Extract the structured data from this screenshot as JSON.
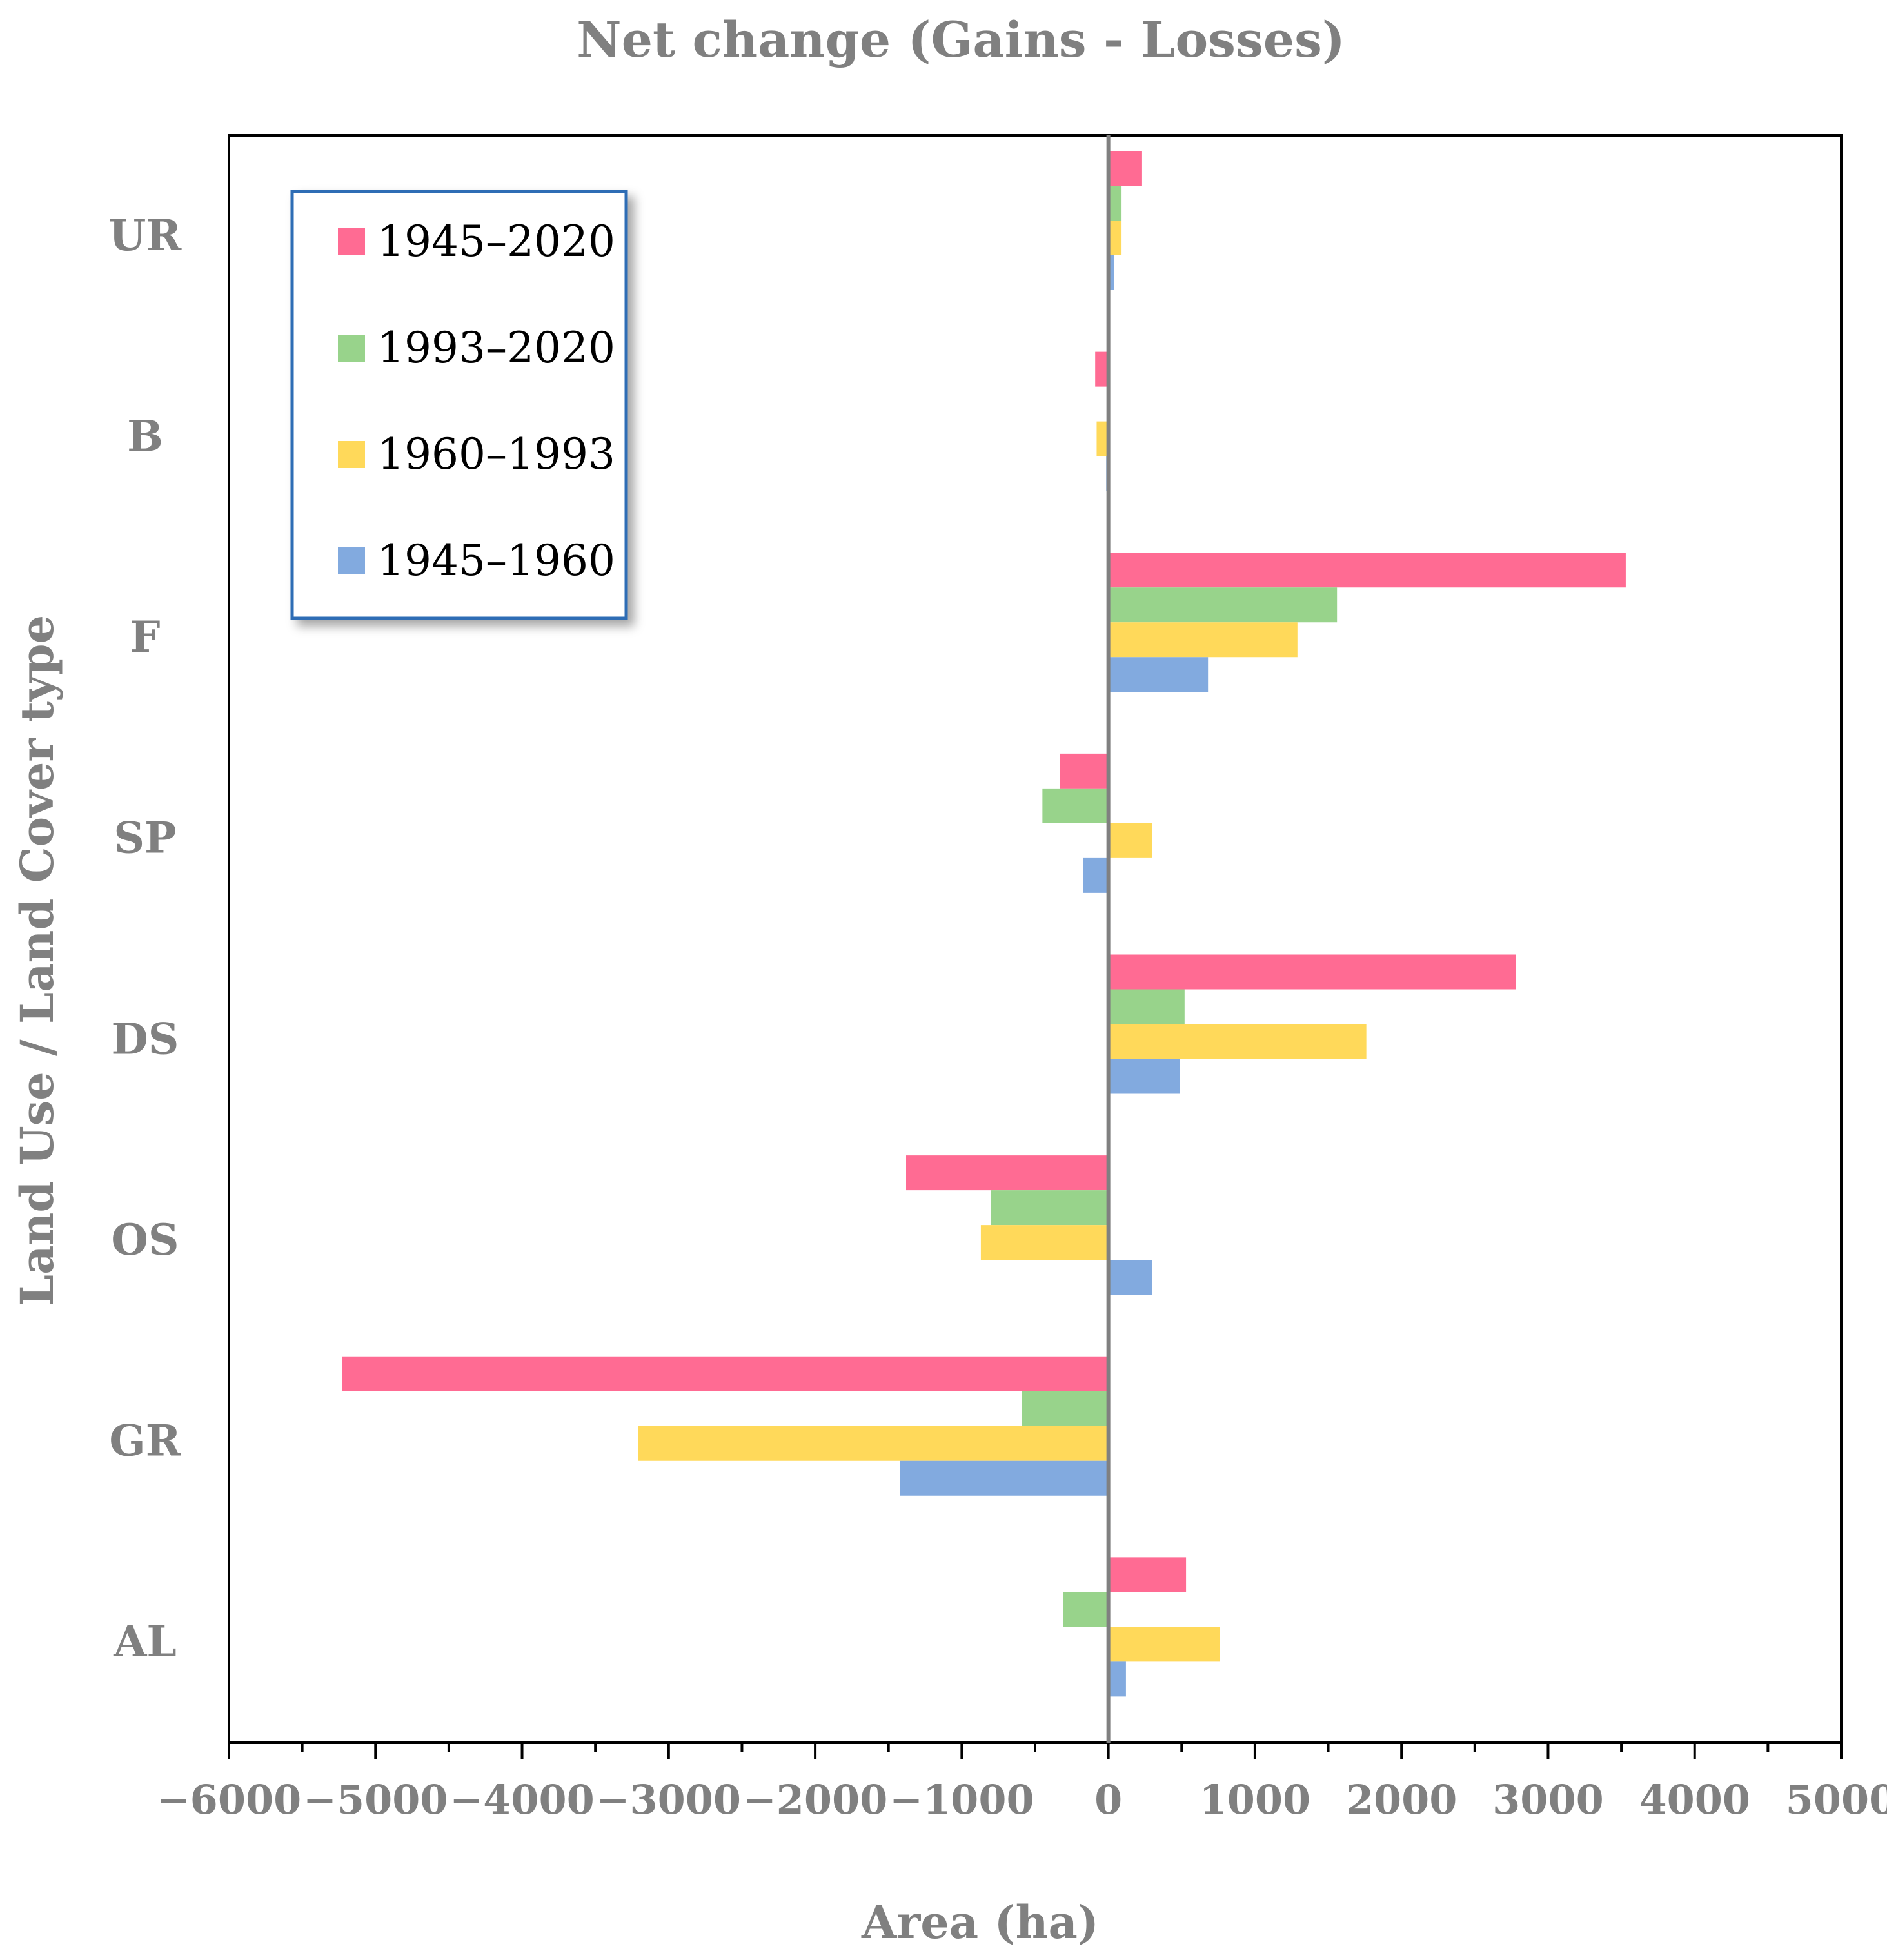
{
  "chart_data": {
    "type": "bar",
    "orientation": "horizontal",
    "title": "Net change (Gains - Losses)",
    "xlabel": "Area (ha)",
    "ylabel": "Land Use / Land Cover type",
    "xlim": [
      -6000,
      5000
    ],
    "x_major_step": 1000,
    "x_minor_step": 500,
    "xticks": [
      "−6000",
      "−5000",
      "−4000",
      "−3000",
      "−2000",
      "−1000",
      "0",
      "1000",
      "2000",
      "3000",
      "4000",
      "5000"
    ],
    "categories": [
      "UR",
      "B",
      "F",
      "SP",
      "DS",
      "OS",
      "GR",
      "AL"
    ],
    "series": [
      {
        "name": "1945–2020",
        "color": "#FF6B93",
        "values": [
          230,
          -90,
          3530,
          -330,
          2780,
          -1380,
          -5230,
          530
        ]
      },
      {
        "name": "1993–2020",
        "color": "#98D38B",
        "values": [
          90,
          0,
          1560,
          -450,
          520,
          -800,
          -590,
          -310
        ]
      },
      {
        "name": "1960–1993",
        "color": "#FFD95A",
        "values": [
          90,
          -80,
          1290,
          300,
          1760,
          -870,
          -3210,
          760
        ]
      },
      {
        "name": "1945–1960",
        "color": "#82AADF",
        "values": [
          40,
          -15,
          680,
          -170,
          490,
          300,
          -1420,
          120
        ]
      }
    ],
    "legend_position": "top-left",
    "grid": false,
    "frame_color": "#000000",
    "legend_border_color": "#2F6DB5",
    "zero_line_color": "#808080"
  }
}
